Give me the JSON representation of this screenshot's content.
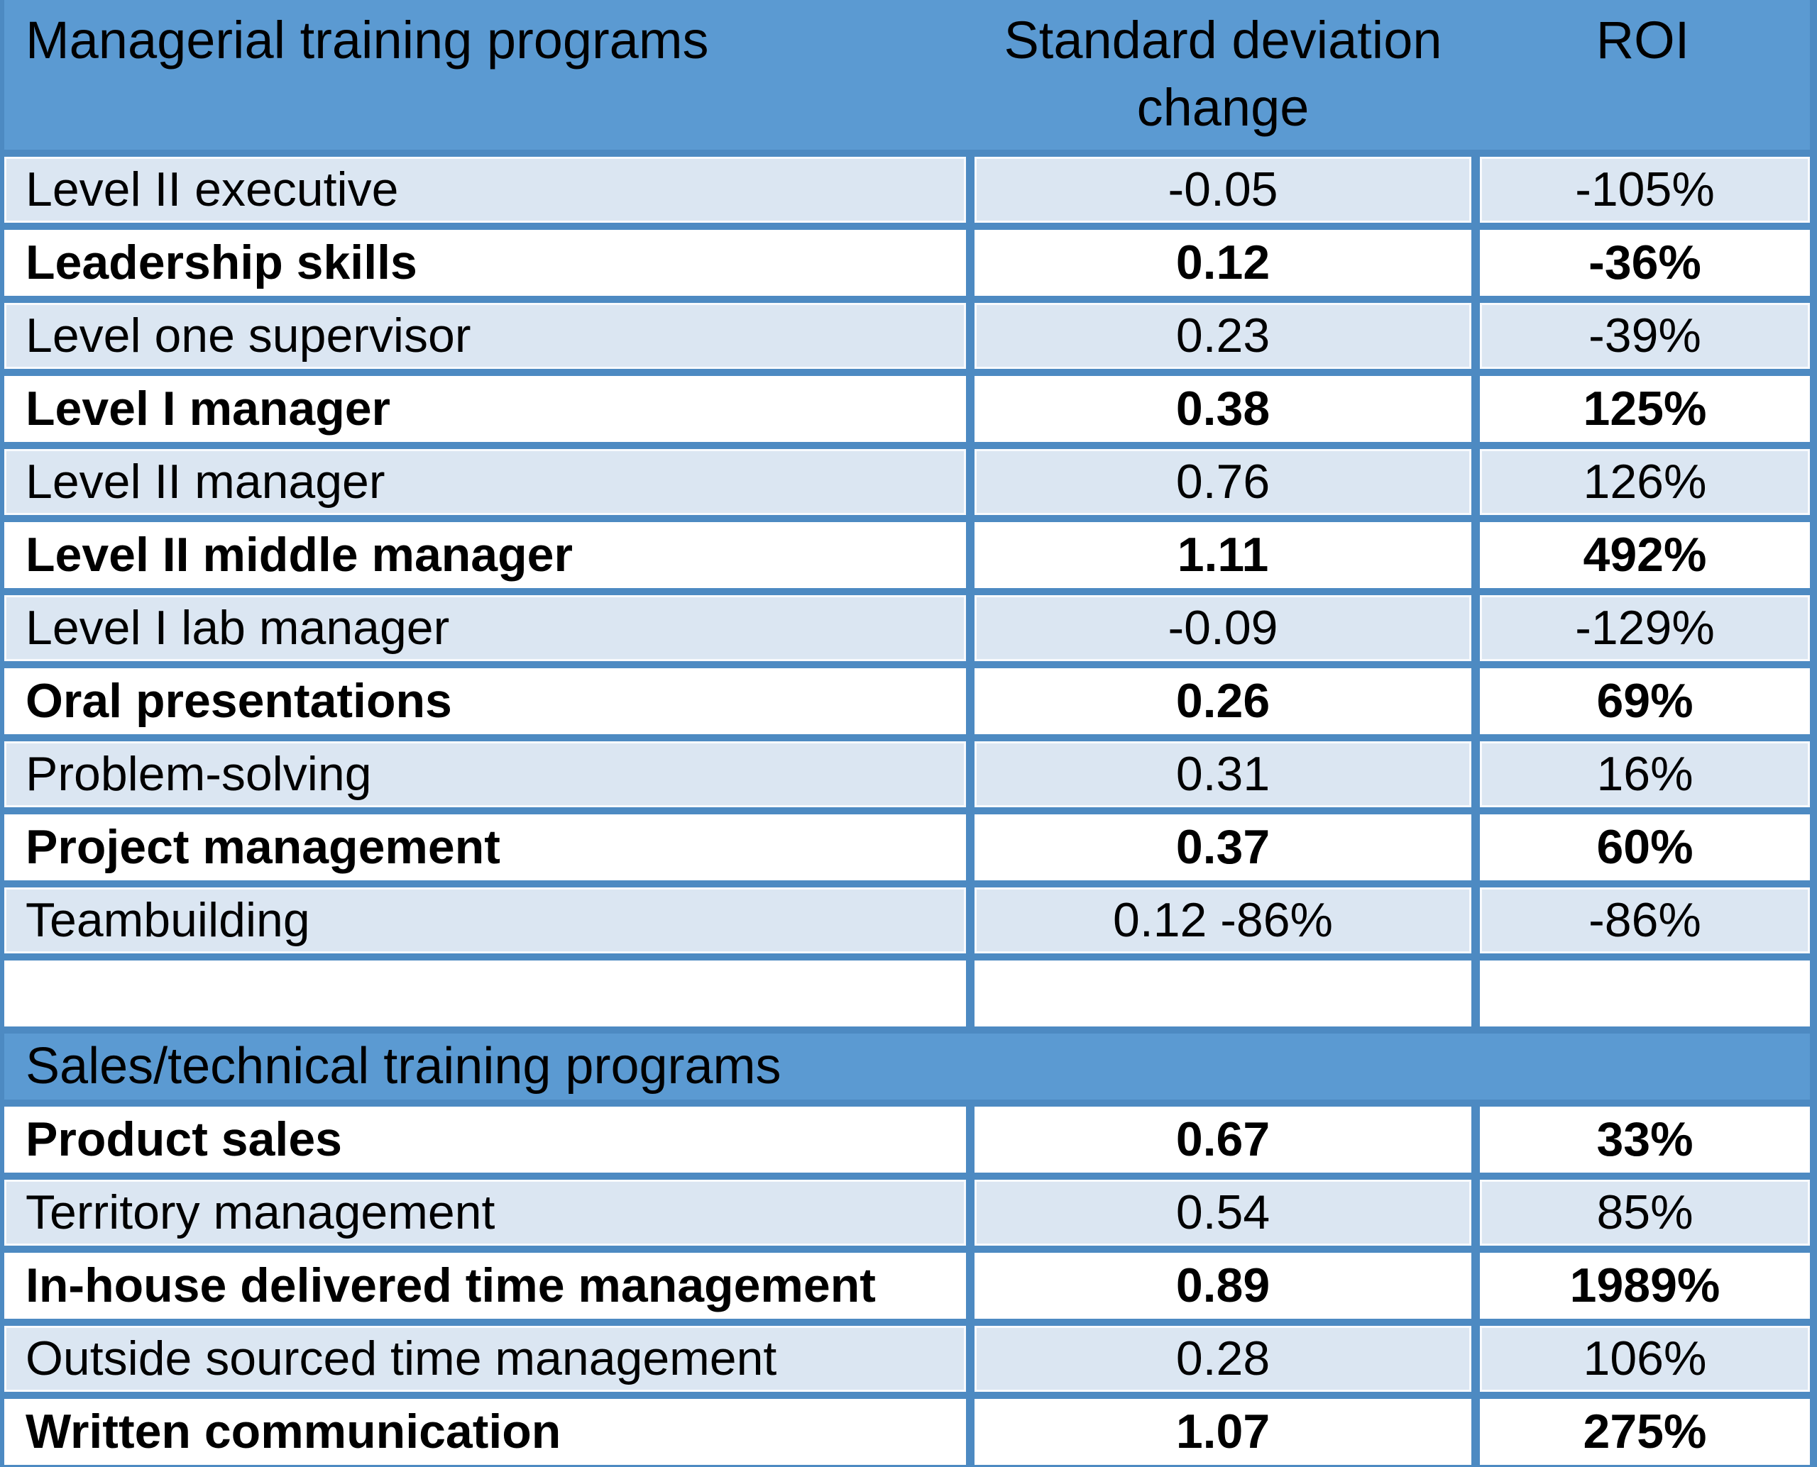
{
  "table": {
    "header": {
      "program": "Managerial training programs",
      "sd": "Standard deviation change",
      "roi": "ROI"
    },
    "managerial_rows": [
      {
        "program": "Level II executive",
        "sd": "-0.05",
        "roi": "-105%"
      },
      {
        "program": "Leadership skills",
        "sd": "0.12",
        "roi": "-36%"
      },
      {
        "program": "Level one supervisor",
        "sd": "0.23",
        "roi": "-39%"
      },
      {
        "program": "Level I manager",
        "sd": "0.38",
        "roi": "125%"
      },
      {
        "program": "Level II manager",
        "sd": "0.76",
        "roi": "126%"
      },
      {
        "program": "Level II middle manager",
        "sd": "1.11",
        "roi": "492%"
      },
      {
        "program": "Level I lab manager",
        "sd": "-0.09",
        "roi": "-129%"
      },
      {
        "program": "Oral presentations",
        "sd": "0.26",
        "roi": "69%"
      },
      {
        "program": "Problem-solving",
        "sd": "0.31",
        "roi": "16%"
      },
      {
        "program": "Project management",
        "sd": "0.37",
        "roi": "60%"
      },
      {
        "program": "Teambuilding",
        "sd": "0.12 -86%",
        "roi": "-86%"
      }
    ],
    "empty_row": {
      "program": "",
      "sd": "",
      "roi": ""
    },
    "section_header": "Sales/technical training programs",
    "sales_rows": [
      {
        "program": "Product sales",
        "sd": "0.67",
        "roi": "33%"
      },
      {
        "program": "Territory management",
        "sd": "0.54",
        "roi": "85%"
      },
      {
        "program": "In-house delivered time management",
        "sd": "0.89",
        "roi": "1989%"
      },
      {
        "program": "Outside sourced time management",
        "sd": "0.28",
        "roi": "106%"
      },
      {
        "program": "Written communication",
        "sd": "1.07",
        "roi": "275%"
      }
    ],
    "colors": {
      "header_blue": "#5b9ad2",
      "border_blue": "#4d8ac2",
      "row_light": "#dbe6f2",
      "row_white": "#ffffff",
      "text": "#000000"
    }
  }
}
